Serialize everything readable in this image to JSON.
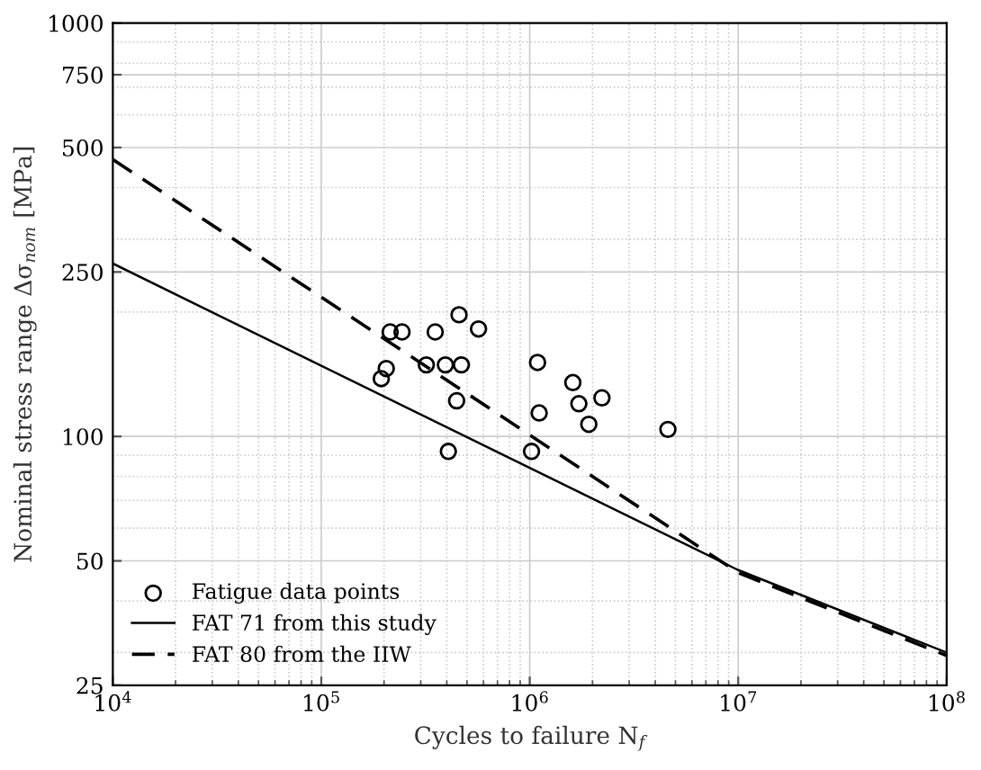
{
  "chart_data": {
    "type": "scatter",
    "xlabel": "Cycles to failure N$_{f}$",
    "ylabel": "Nominal stress range Δσ$_{nom}$ [MPa]",
    "log": "xy",
    "xlim": [
      10000,
      100000000
    ],
    "ylim": [
      25,
      1000
    ],
    "xticks": [
      {
        "value": 10000,
        "label": "10$^{4}$"
      },
      {
        "value": 100000,
        "label": "10$^{5}$"
      },
      {
        "value": 1000000,
        "label": "10$^{6}$"
      },
      {
        "value": 10000000,
        "label": "10$^{7}$"
      },
      {
        "value": 100000000,
        "label": "10$^{8}$"
      }
    ],
    "yticks": [
      25,
      50,
      100,
      250,
      500,
      750,
      1000
    ],
    "grid": true,
    "legend": "bottom left",
    "series": [
      {
        "name": "Fatigue data points",
        "marker": "circle",
        "color": "#000000",
        "x": [
          458000,
          214000,
          244000,
          352000,
          568000,
          205000,
          194000,
          319000,
          394000,
          470000,
          446000,
          407000,
          1090000,
          1610000,
          1720000,
          2220000,
          1110000,
          1920000,
          1020000,
          4600000
        ],
        "values": [
          197,
          179,
          179,
          179,
          182,
          146,
          138,
          149,
          149,
          149,
          122,
          92,
          151,
          135,
          120,
          124,
          114,
          107,
          92,
          104
        ]
      },
      {
        "name": "FAT 71 from this study",
        "type": "line",
        "marker": "none",
        "line_style": "solid",
        "color": "#000000",
        "x": [
          10000,
          10000000,
          100000000
        ],
        "values": [
          262,
          47.5,
          30
        ]
      },
      {
        "name": "FAT 80 from the IIW",
        "type": "line",
        "marker": "none",
        "line_style": "dashed",
        "color": "#000000",
        "x": [
          10000,
          10000000,
          100000000
        ],
        "values": [
          468,
          46.8,
          29.5
        ]
      }
    ]
  }
}
